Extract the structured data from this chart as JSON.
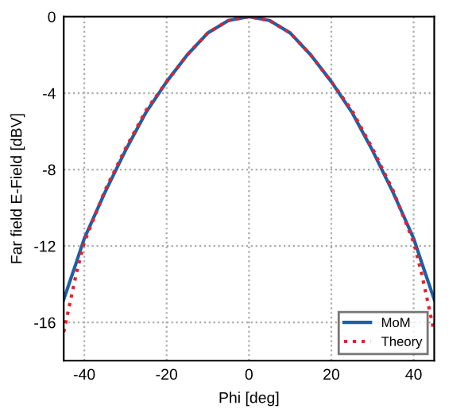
{
  "chart_data": {
    "type": "line",
    "xlabel": "Phi [deg]",
    "ylabel": "Far field E-Field [dBV]",
    "x": [
      -45,
      -42,
      -40,
      -35,
      -30,
      -25,
      -20,
      -15,
      -10,
      -5,
      0,
      5,
      10,
      15,
      20,
      25,
      30,
      35,
      40,
      42,
      45
    ],
    "series": [
      {
        "name": "MoM",
        "color": "#1f5fa6",
        "line_style": "solid",
        "values": [
          -14.8,
          -12.9,
          -11.6,
          -9.2,
          -7.0,
          -5.0,
          -3.4,
          -2.0,
          -0.85,
          -0.2,
          0,
          -0.2,
          -0.85,
          -2.0,
          -3.4,
          -5.0,
          -7.0,
          -9.2,
          -11.6,
          -12.9,
          -14.8
        ]
      },
      {
        "name": "Theory",
        "color": "#e8202a",
        "line_style": "dotted",
        "values": [
          -16.5,
          -13.5,
          -11.8,
          -9.1,
          -6.9,
          -4.9,
          -3.4,
          -2.0,
          -0.85,
          -0.2,
          0,
          -0.2,
          -0.85,
          -2.0,
          -3.4,
          -4.9,
          -6.9,
          -9.1,
          -11.8,
          -13.5,
          -16.5
        ]
      }
    ],
    "xlim": [
      -45,
      45
    ],
    "ylim": [
      -18,
      0
    ],
    "xticks": [
      -40,
      -20,
      0,
      20,
      40
    ],
    "yticks": [
      -16,
      -12,
      -8,
      -4,
      0
    ],
    "grid": true,
    "legend": "bottom right"
  }
}
